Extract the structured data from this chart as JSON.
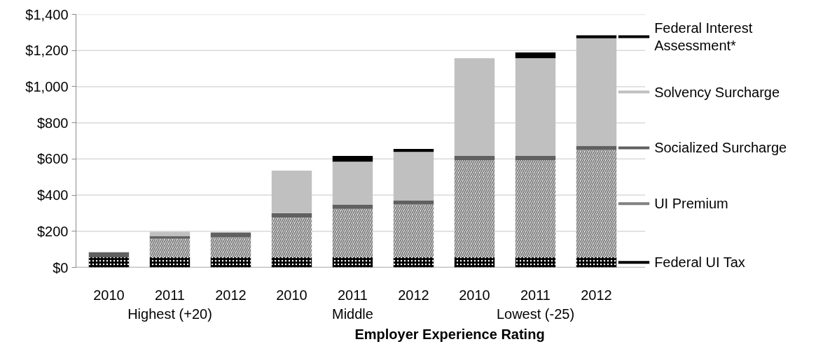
{
  "chart_data": {
    "type": "bar",
    "stacked": true,
    "xlabel": "Employer Experience Rating",
    "categories": [
      "2010",
      "2011",
      "2012",
      "2010",
      "2011",
      "2012",
      "2010",
      "2011",
      "2012"
    ],
    "series": [
      {
        "name": "Federal UI Tax",
        "color": "#000000",
        "values": [
          56,
          56,
          56,
          56,
          56,
          56,
          56,
          56,
          56
        ]
      },
      {
        "name": "UI Premium",
        "color": "#808080",
        "values": [
          0,
          103,
          110,
          220,
          268,
          292,
          538,
          538,
          594
        ]
      },
      {
        "name": "Socialized Surcharge",
        "color": "#606060",
        "values": [
          28,
          15,
          27,
          25,
          24,
          23,
          23,
          23,
          23
        ]
      },
      {
        "name": "Solvency Surcharge",
        "color": "#c0c0c0",
        "values": [
          0,
          23,
          0,
          235,
          237,
          268,
          540,
          540,
          595
        ]
      },
      {
        "name": "Federal Interest Assessment*",
        "color": "#000000",
        "values": [
          0,
          0,
          0,
          0,
          32,
          17,
          0,
          32,
          16
        ]
      }
    ],
    "annotations": [
      "Highest (+20)",
      "Middle",
      "Lowest (-25)"
    ],
    "ylim": [
      0,
      1400
    ],
    "yticks": [
      {
        "value": 0,
        "label": "$0"
      },
      {
        "value": 200,
        "label": "$200"
      },
      {
        "value": 400,
        "label": "$400"
      },
      {
        "value": 600,
        "label": "$600"
      },
      {
        "value": 800,
        "label": "$800"
      },
      {
        "value": 1000,
        "label": "$1,000"
      },
      {
        "value": 1200,
        "label": "$1,200"
      },
      {
        "value": 1400,
        "label": "$1,400"
      }
    ],
    "grid": "y",
    "legend": "right"
  }
}
